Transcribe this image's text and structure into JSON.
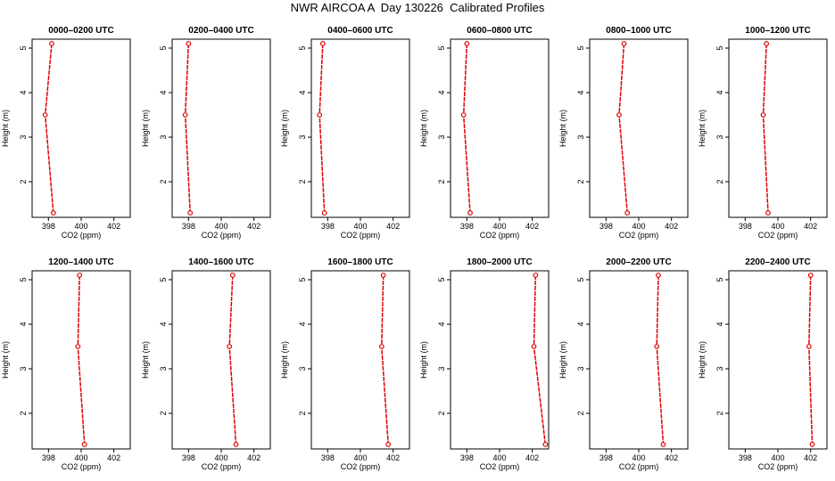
{
  "title": "NWR AIRCOA A  Day 130226  Calibrated Profiles",
  "colors": {
    "series": "#dd0000",
    "axis": "#000000",
    "background": "#ffffff"
  },
  "chart_data": [
    {
      "type": "line",
      "title": "0000–0200 UTC",
      "xlabel": "CO2 (ppm)",
      "ylabel": "Height (m)",
      "xlim": [
        397,
        403
      ],
      "ylim": [
        1.2,
        5.2
      ],
      "xticks": [
        398,
        400,
        402
      ],
      "yticks": [
        2,
        3,
        4,
        5
      ],
      "grid": false,
      "series": [
        {
          "x": [
            398.2,
            397.8,
            398.3
          ],
          "y": [
            5.1,
            3.5,
            1.3
          ]
        }
      ]
    },
    {
      "type": "line",
      "title": "0200–0400 UTC",
      "xlabel": "CO2 (ppm)",
      "ylabel": "Height (m)",
      "xlim": [
        397,
        403
      ],
      "ylim": [
        1.2,
        5.2
      ],
      "xticks": [
        398,
        400,
        402
      ],
      "yticks": [
        2,
        3,
        4,
        5
      ],
      "grid": false,
      "series": [
        {
          "x": [
            398.0,
            397.8,
            398.1
          ],
          "y": [
            5.1,
            3.5,
            1.3
          ]
        }
      ]
    },
    {
      "type": "line",
      "title": "0400–0600 UTC",
      "xlabel": "CO2 (ppm)",
      "ylabel": "Height (m)",
      "xlim": [
        397,
        403
      ],
      "ylim": [
        1.2,
        5.2
      ],
      "xticks": [
        398,
        400,
        402
      ],
      "yticks": [
        2,
        3,
        4,
        5
      ],
      "grid": false,
      "series": [
        {
          "x": [
            397.7,
            397.5,
            397.8
          ],
          "y": [
            5.1,
            3.5,
            1.3
          ]
        }
      ]
    },
    {
      "type": "line",
      "title": "0600–0800 UTC",
      "xlabel": "CO2 (ppm)",
      "ylabel": "Height (m)",
      "xlim": [
        397,
        403
      ],
      "ylim": [
        1.2,
        5.2
      ],
      "xticks": [
        398,
        400,
        402
      ],
      "yticks": [
        2,
        3,
        4,
        5
      ],
      "grid": false,
      "series": [
        {
          "x": [
            398.0,
            397.8,
            398.2
          ],
          "y": [
            5.1,
            3.5,
            1.3
          ]
        }
      ]
    },
    {
      "type": "line",
      "title": "0800–1000 UTC",
      "xlabel": "CO2 (ppm)",
      "ylabel": "Height (m)",
      "xlim": [
        397,
        403
      ],
      "ylim": [
        1.2,
        5.2
      ],
      "xticks": [
        398,
        400,
        402
      ],
      "yticks": [
        2,
        3,
        4,
        5
      ],
      "grid": false,
      "series": [
        {
          "x": [
            399.1,
            398.8,
            399.3
          ],
          "y": [
            5.1,
            3.5,
            1.3
          ]
        }
      ]
    },
    {
      "type": "line",
      "title": "1000–1200 UTC",
      "xlabel": "CO2 (ppm)",
      "ylabel": "Height (m)",
      "xlim": [
        397,
        403
      ],
      "ylim": [
        1.2,
        5.2
      ],
      "xticks": [
        398,
        400,
        402
      ],
      "yticks": [
        2,
        3,
        4,
        5
      ],
      "grid": false,
      "series": [
        {
          "x": [
            399.3,
            399.1,
            399.4
          ],
          "y": [
            5.1,
            3.5,
            1.3
          ]
        }
      ]
    },
    {
      "type": "line",
      "title": "1200–1400 UTC",
      "xlabel": "CO2 (ppm)",
      "ylabel": "Height (m)",
      "xlim": [
        397,
        403
      ],
      "ylim": [
        1.2,
        5.2
      ],
      "xticks": [
        398,
        400,
        402
      ],
      "yticks": [
        2,
        3,
        4,
        5
      ],
      "grid": false,
      "series": [
        {
          "x": [
            399.9,
            399.8,
            400.2
          ],
          "y": [
            5.1,
            3.5,
            1.3
          ]
        }
      ]
    },
    {
      "type": "line",
      "title": "1400–1600 UTC",
      "xlabel": "CO2 (ppm)",
      "ylabel": "Height (m)",
      "xlim": [
        397,
        403
      ],
      "ylim": [
        1.2,
        5.2
      ],
      "xticks": [
        398,
        400,
        402
      ],
      "yticks": [
        2,
        3,
        4,
        5
      ],
      "grid": false,
      "series": [
        {
          "x": [
            400.7,
            400.5,
            400.9
          ],
          "y": [
            5.1,
            3.5,
            1.3
          ]
        }
      ]
    },
    {
      "type": "line",
      "title": "1600–1800 UTC",
      "xlabel": "CO2 (ppm)",
      "ylabel": "Height (m)",
      "xlim": [
        397,
        403
      ],
      "ylim": [
        1.2,
        5.2
      ],
      "xticks": [
        398,
        400,
        402
      ],
      "yticks": [
        2,
        3,
        4,
        5
      ],
      "grid": false,
      "series": [
        {
          "x": [
            401.4,
            401.3,
            401.7
          ],
          "y": [
            5.1,
            3.5,
            1.3
          ]
        }
      ]
    },
    {
      "type": "line",
      "title": "1800–2000 UTC",
      "xlabel": "CO2 (ppm)",
      "ylabel": "Height (m)",
      "xlim": [
        397,
        403
      ],
      "ylim": [
        1.2,
        5.2
      ],
      "xticks": [
        398,
        400,
        402
      ],
      "yticks": [
        2,
        3,
        4,
        5
      ],
      "grid": false,
      "series": [
        {
          "x": [
            402.2,
            402.1,
            402.8
          ],
          "y": [
            5.1,
            3.5,
            1.3
          ]
        }
      ]
    },
    {
      "type": "line",
      "title": "2000–2200 UTC",
      "xlabel": "CO2 (ppm)",
      "ylabel": "Height (m)",
      "xlim": [
        397,
        403
      ],
      "ylim": [
        1.2,
        5.2
      ],
      "xticks": [
        398,
        400,
        402
      ],
      "yticks": [
        2,
        3,
        4,
        5
      ],
      "grid": false,
      "series": [
        {
          "x": [
            401.2,
            401.1,
            401.5
          ],
          "y": [
            5.1,
            3.5,
            1.3
          ]
        }
      ]
    },
    {
      "type": "line",
      "title": "2200–2400 UTC",
      "xlabel": "CO2 (ppm)",
      "ylabel": "Height (m)",
      "xlim": [
        397,
        403
      ],
      "ylim": [
        1.2,
        5.2
      ],
      "xticks": [
        398,
        400,
        402
      ],
      "yticks": [
        2,
        3,
        4,
        5
      ],
      "grid": false,
      "series": [
        {
          "x": [
            402.0,
            401.9,
            402.1
          ],
          "y": [
            5.1,
            3.5,
            1.3
          ]
        }
      ]
    }
  ]
}
